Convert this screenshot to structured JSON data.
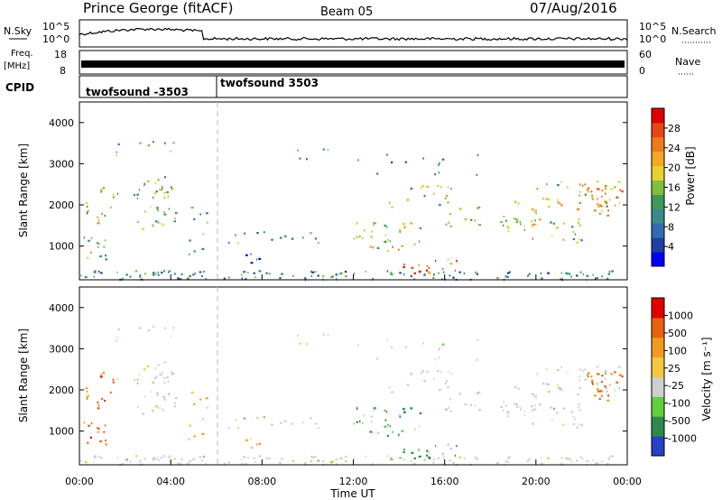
{
  "header": {
    "station": "Prince George (fitACF)",
    "beam": "Beam 05",
    "date": "07/Aug/2016"
  },
  "top_panels": {
    "nsky_label": "N.Sky",
    "nsky_ticks": [
      "10^5",
      "10^0"
    ],
    "nsearch_label": "N.Search",
    "nsearch_ticks": [
      "10^5",
      "10^0"
    ],
    "freq_label_1": "Freq.",
    "freq_label_2": "[MHz]",
    "freq_ticks": [
      "18",
      "8"
    ],
    "nave_label": "Nave",
    "nave_ticks": [
      "60",
      "0"
    ],
    "cpid_label": "CPID",
    "cpid_1": "twofsound -3503",
    "cpid_2": "twofsound 3503"
  },
  "chart_data": [
    {
      "type": "heatmap",
      "title": "",
      "xlabel": "",
      "ylabel": "Slant Range [km]",
      "ylim": [
        180,
        4500
      ],
      "yticks": [
        "4000",
        "3000",
        "2000",
        "1000"
      ],
      "colorbar": {
        "label": "Power [dB]",
        "ticks": [
          "28",
          "24",
          "20",
          "16",
          "12",
          "8",
          "4"
        ],
        "colors": [
          "#0000ff",
          "#1e3fa5",
          "#2f6db0",
          "#3b8a8c",
          "#3f9a5a",
          "#7fbf3f",
          "#e6d22e",
          "#f5a623",
          "#f07a1a",
          "#e84515",
          "#e00000"
        ]
      }
    },
    {
      "type": "heatmap",
      "title": "",
      "xlabel": "Time UT",
      "ylabel": "Slant Range [km]",
      "ylim": [
        180,
        4500
      ],
      "yticks": [
        "4000",
        "3000",
        "2000",
        "1000"
      ],
      "xticks": [
        "00:00",
        "04:00",
        "08:00",
        "12:00",
        "16:00",
        "20:00",
        "00:00"
      ],
      "colorbar": {
        "label": "Velocity [m s⁻¹]",
        "ticks": [
          "1000",
          "500",
          "100",
          "25",
          "-25",
          "-100",
          "-500",
          "-1000"
        ],
        "colors": [
          "#2640c8",
          "#2e8a4a",
          "#5fcf3a",
          "#cfcfcf",
          "#f5c840",
          "#f09a20",
          "#e86010",
          "#e00000"
        ]
      }
    }
  ]
}
